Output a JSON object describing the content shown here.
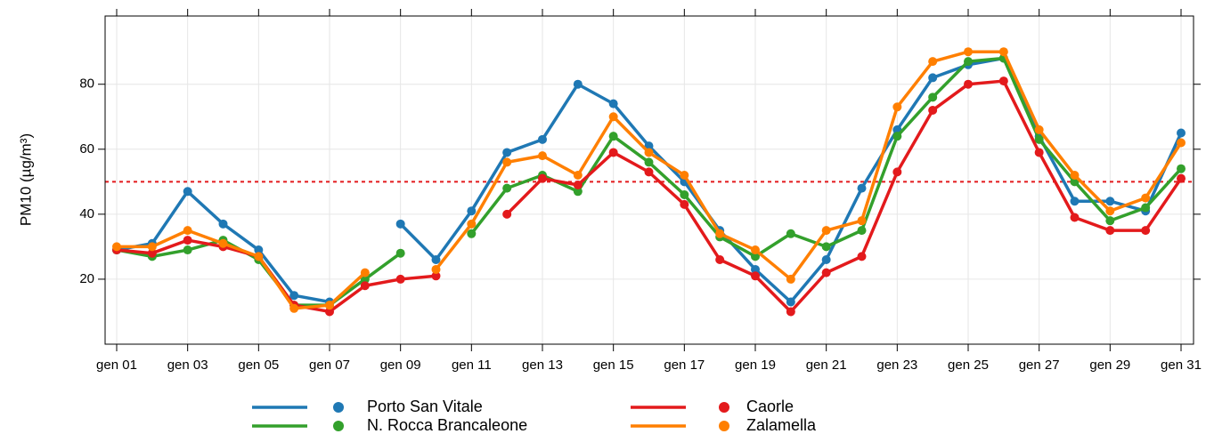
{
  "chart_data": {
    "type": "line",
    "y_label": "PM10 (µg/m³)",
    "categories": [
      "gen 01",
      null,
      "gen 03",
      null,
      "gen 05",
      null,
      "gen 07",
      null,
      "gen 09",
      null,
      "gen 11",
      null,
      "gen 13",
      null,
      "gen 15",
      null,
      "gen 17",
      null,
      "gen 19",
      null,
      "gen 21",
      null,
      "gen 23",
      null,
      "gen 25",
      null,
      "gen 27",
      null,
      "gen 29",
      null,
      "gen 31"
    ],
    "ylim": [
      0,
      101
    ],
    "yticks": [
      20,
      40,
      60,
      80
    ],
    "grid": true,
    "reference_line": {
      "value": 50,
      "color": "#e31a1c"
    },
    "legend": "bottom",
    "series": [
      {
        "name": "Porto San Vitale",
        "color": "#1f78b4",
        "values": [
          29,
          31,
          47,
          37,
          29,
          15,
          13,
          null,
          37,
          26,
          41,
          59,
          63,
          80,
          74,
          61,
          50,
          35,
          23,
          13,
          26,
          48,
          66,
          82,
          86,
          88,
          64,
          44,
          44,
          41,
          65
        ]
      },
      {
        "name": "N. Rocca Brancaleone",
        "color": "#33a02c",
        "values": [
          29,
          27,
          29,
          32,
          26,
          12,
          12,
          20,
          28,
          null,
          34,
          48,
          52,
          47,
          64,
          56,
          46,
          33,
          27,
          34,
          30,
          35,
          64,
          76,
          87,
          88,
          63,
          50,
          38,
          42,
          54
        ]
      },
      {
        "name": "Caorle",
        "color": "#e31a1c",
        "values": [
          29,
          28,
          32,
          30,
          27,
          12,
          10,
          18,
          20,
          21,
          null,
          40,
          51,
          49,
          59,
          53,
          43,
          26,
          21,
          10,
          22,
          27,
          53,
          72,
          80,
          81,
          59,
          39,
          35,
          35,
          51
        ]
      },
      {
        "name": "Zalamella",
        "color": "#ff7f00",
        "values": [
          30,
          30,
          35,
          31,
          27,
          11,
          12,
          22,
          null,
          23,
          37,
          56,
          58,
          52,
          70,
          59,
          52,
          34,
          29,
          20,
          35,
          38,
          73,
          87,
          90,
          90,
          66,
          52,
          41,
          45,
          62
        ]
      }
    ]
  }
}
